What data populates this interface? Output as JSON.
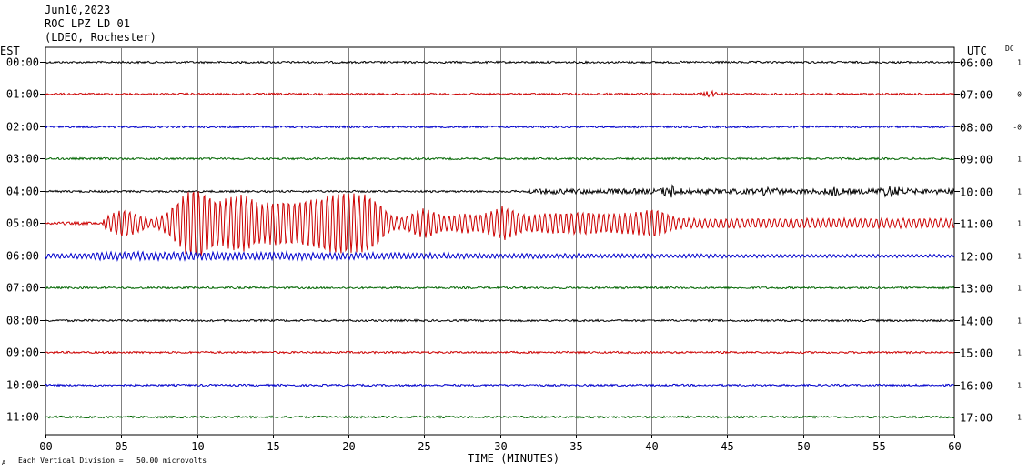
{
  "header": {
    "line1": "Jun10,2023",
    "line2": "ROC LPZ LD 01",
    "line3": "(LDEO, Rochester)"
  },
  "left_axis_title": "EST",
  "right_axis_title": "UTC",
  "dc_title": "DC",
  "footer": {
    "scale_note": "Each Vertical Division =   50.00 microvolts",
    "corner_mark": "A"
  },
  "chart_data": {
    "type": "line",
    "title": "",
    "xlabel": "TIME (MINUTES)",
    "ylabel": "",
    "xlim": [
      0,
      60
    ],
    "x_ticks": [
      0,
      5,
      10,
      15,
      20,
      25,
      30,
      35,
      40,
      45,
      50,
      55,
      60
    ],
    "x_tick_labels": [
      "00",
      "05",
      "10",
      "15",
      "20",
      "25",
      "30",
      "35",
      "40",
      "45",
      "50",
      "55",
      "60"
    ],
    "grid": true,
    "colors": {
      "black": "#000000",
      "red": "#cc0000",
      "blue": "#0000cc",
      "green": "#006600",
      "grid": "#808080"
    },
    "traces": [
      {
        "est": "00:00",
        "utc": "06:00",
        "dc": "1",
        "color": "black",
        "activity": "quiet"
      },
      {
        "est": "01:00",
        "utc": "07:00",
        "dc": "0",
        "color": "red",
        "activity": "quiet",
        "note": "small burst near minute 44"
      },
      {
        "est": "02:00",
        "utc": "08:00",
        "dc": "-0",
        "color": "blue",
        "activity": "quiet"
      },
      {
        "est": "03:00",
        "utc": "09:00",
        "dc": "1",
        "color": "green",
        "activity": "quiet"
      },
      {
        "est": "04:00",
        "utc": "10:00",
        "dc": "1",
        "color": "black",
        "activity": "onset",
        "note": "signal increases after minute 32, spikes near 41, 48, 52, 56"
      },
      {
        "est": "05:00",
        "utc": "11:00",
        "dc": "1",
        "color": "red",
        "activity": "large",
        "note": "large surface-wave packets from ~minute 4 to 31, decaying to 60"
      },
      {
        "est": "06:00",
        "utc": "12:00",
        "dc": "1",
        "color": "blue",
        "activity": "moderate",
        "note": "moderate oscillation decaying after minute 30"
      },
      {
        "est": "07:00",
        "utc": "13:00",
        "dc": "1",
        "color": "green",
        "activity": "quiet"
      },
      {
        "est": "08:00",
        "utc": "14:00",
        "dc": "1",
        "color": "black",
        "activity": "quiet"
      },
      {
        "est": "09:00",
        "utc": "15:00",
        "dc": "1",
        "color": "red",
        "activity": "quiet"
      },
      {
        "est": "10:00",
        "utc": "16:00",
        "dc": "1",
        "color": "blue",
        "activity": "quiet"
      },
      {
        "est": "11:00",
        "utc": "17:00",
        "dc": "1",
        "color": "green",
        "activity": "quiet"
      }
    ]
  }
}
